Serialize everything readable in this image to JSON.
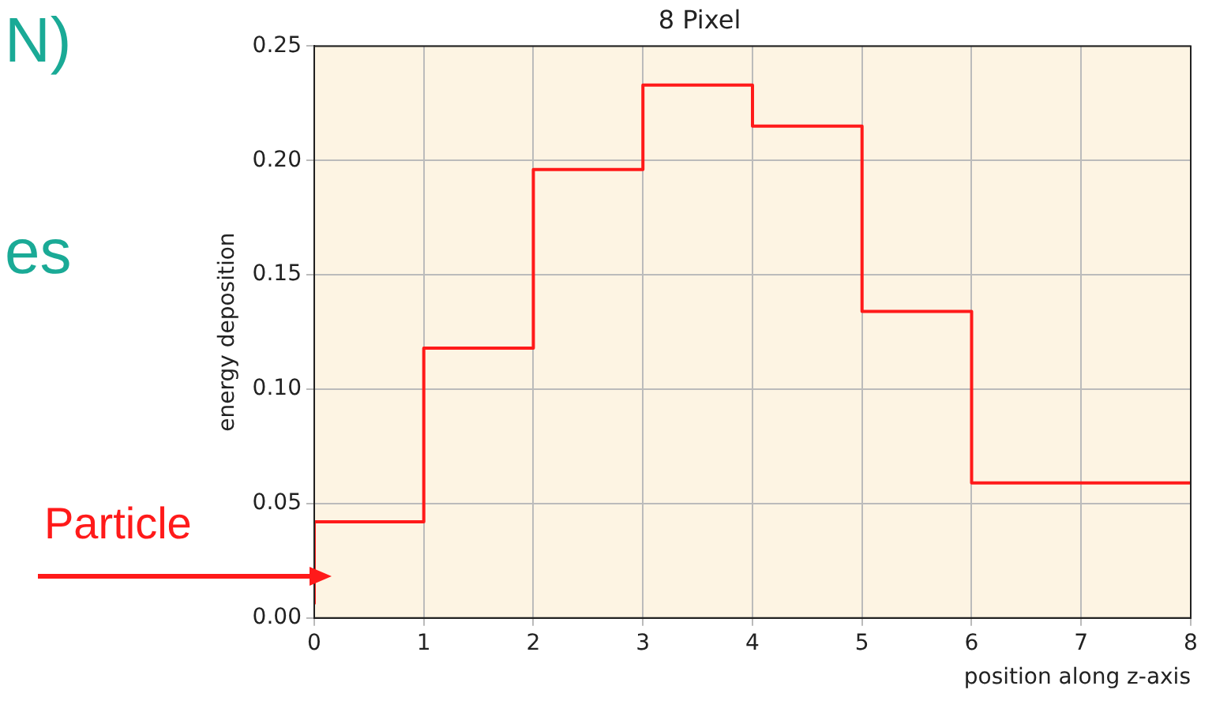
{
  "chart_data": {
    "type": "step",
    "title": "8 Pixel",
    "xlabel": "position along z-axis",
    "ylabel": "energy deposition",
    "x": [
      0,
      1,
      2,
      3,
      4,
      5,
      6,
      7,
      8
    ],
    "values": [
      0.006,
      0.042,
      0.118,
      0.196,
      0.233,
      0.215,
      0.134,
      0.059,
      0.059
    ],
    "color": "#ff1a1a",
    "xlim": [
      0,
      8
    ],
    "xticks": [
      0,
      1,
      2,
      3,
      4,
      5,
      6,
      7,
      8
    ],
    "ylim": [
      0,
      0.25
    ],
    "yticks": [
      {
        "value": 0,
        "label": "0.00"
      },
      {
        "value": 0.05,
        "label": "0.05"
      },
      {
        "value": 0.1,
        "label": "0.10"
      },
      {
        "value": 0.15,
        "label": "0.15"
      },
      {
        "value": 0.2,
        "label": "0.20"
      },
      {
        "value": 0.25,
        "label": "0.25"
      }
    ],
    "grid": true,
    "legend": false,
    "annotations": [
      "N)",
      "es",
      "Particle"
    ]
  }
}
